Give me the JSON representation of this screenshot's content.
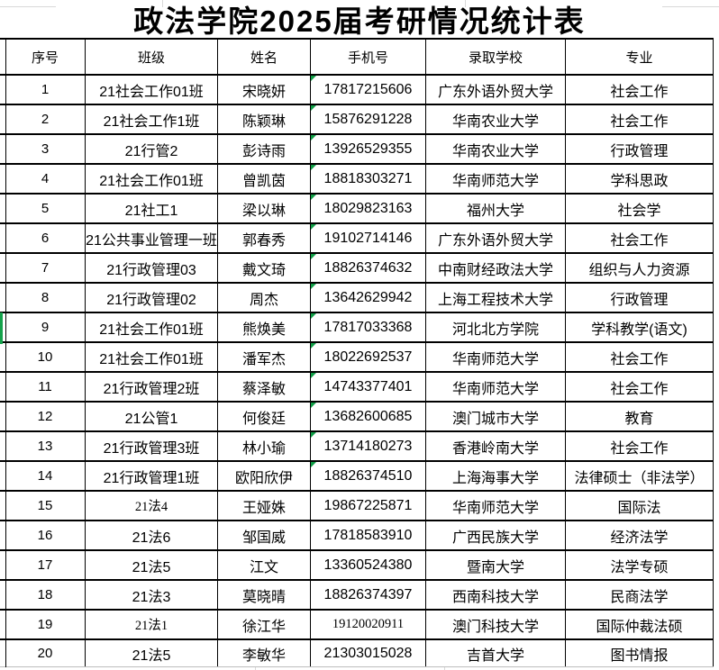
{
  "title": "政法学院2025届考研情况统计表",
  "columns": {
    "no": "序号",
    "class": "班级",
    "name": "姓名",
    "phone": "手机号",
    "school": "录取学校",
    "major": "专业"
  },
  "colors": {
    "border_black": "#000000",
    "gridline_gray": "#d9d9d9",
    "selection_green": "#14a24b",
    "triangle_green": "#0f9d45"
  },
  "selection": {
    "selected_row_no": "9"
  },
  "icons": {
    "error_triangle": "number-stored-as-text-indicator"
  },
  "rows": [
    {
      "no": "1",
      "class": "21社会工作01班",
      "name": "宋晓妍",
      "phone": "17817215606",
      "school": "广东外语外贸大学",
      "major": "社会工作",
      "flag": true,
      "serif_class": false,
      "serif_phone": false
    },
    {
      "no": "2",
      "class": "21社会工作1班",
      "name": "陈颖琳",
      "phone": "15876291228",
      "school": "华南农业大学",
      "major": "社会工作",
      "flag": true,
      "serif_class": false,
      "serif_phone": false
    },
    {
      "no": "3",
      "class": "21行管2",
      "name": "彭诗雨",
      "phone": "13926529355",
      "school": "华南农业大学",
      "major": "行政管理",
      "flag": true,
      "serif_class": false,
      "serif_phone": false
    },
    {
      "no": "4",
      "class": "21社会工作01班",
      "name": "曾凯茵",
      "phone": "18818303271",
      "school": "华南师范大学",
      "major": "学科思政",
      "flag": true,
      "serif_class": false,
      "serif_phone": false
    },
    {
      "no": "5",
      "class": "21社工1",
      "name": "梁以琳",
      "phone": "18029823163",
      "school": "福州大学",
      "major": "社会学",
      "flag": true,
      "serif_class": false,
      "serif_phone": false
    },
    {
      "no": "6",
      "class": "21公共事业管理一班",
      "name": "郭春秀",
      "phone": "19102714146",
      "school": "广东外语外贸大学",
      "major": "社会工作",
      "flag": true,
      "serif_class": false,
      "serif_phone": false
    },
    {
      "no": "7",
      "class": "21行政管理03",
      "name": "戴文琦",
      "phone": "18826374632",
      "school": "中南财经政法大学",
      "major": "组织与人力资源",
      "flag": true,
      "serif_class": false,
      "serif_phone": false
    },
    {
      "no": "8",
      "class": "21行政管理02",
      "name": "周杰",
      "phone": "13642629942",
      "school": "上海工程技术大学",
      "major": "行政管理",
      "flag": true,
      "serif_class": false,
      "serif_phone": false
    },
    {
      "no": "9",
      "class": "21社会工作01班",
      "name": "熊焕美",
      "phone": "17817033368",
      "school": "河北北方学院",
      "major": "学科教学(语文)",
      "flag": true,
      "serif_class": false,
      "serif_phone": false
    },
    {
      "no": "10",
      "class": "21社会工作01班",
      "name": "潘军杰",
      "phone": "18022692537",
      "school": "华南师范大学",
      "major": "社会工作",
      "flag": true,
      "serif_class": false,
      "serif_phone": false
    },
    {
      "no": "11",
      "class": "21行政管理2班",
      "name": "蔡泽敏",
      "phone": "14743377401",
      "school": "华南师范大学",
      "major": "社会工作",
      "flag": true,
      "serif_class": false,
      "serif_phone": false
    },
    {
      "no": "12",
      "class": "21公管1",
      "name": "何俊廷",
      "phone": "13682600685",
      "school": "澳门城市大学",
      "major": "教育",
      "flag": true,
      "serif_class": false,
      "serif_phone": false
    },
    {
      "no": "13",
      "class": "21行政管理3班",
      "name": "林小瑜",
      "phone": "13714180273",
      "school": "香港岭南大学",
      "major": "社会工作",
      "flag": true,
      "serif_class": false,
      "serif_phone": false
    },
    {
      "no": "14",
      "class": "21行政管理1班",
      "name": "欧阳欣伊",
      "phone": "18826374510",
      "school": "上海海事大学",
      "major": "法律硕士（非法学）",
      "flag": true,
      "serif_class": false,
      "serif_phone": false
    },
    {
      "no": "15",
      "class": "21法4",
      "name": "王娅姝",
      "phone": "19867225871",
      "school": "华南师范大学",
      "major": "国际法",
      "flag": false,
      "serif_class": true,
      "serif_phone": false
    },
    {
      "no": "16",
      "class": "21法6",
      "name": "邹国威",
      "phone": "17818583910",
      "school": "广西民族大学",
      "major": "经济法学",
      "flag": false,
      "serif_class": false,
      "serif_phone": false
    },
    {
      "no": "17",
      "class": "21法5",
      "name": "江文",
      "phone": "13360524380",
      "school": "暨南大学",
      "major": "法学专硕",
      "flag": false,
      "serif_class": false,
      "serif_phone": false
    },
    {
      "no": "18",
      "class": "21法3",
      "name": "莫晓晴",
      "phone": "18826374397",
      "school": "西南科技大学",
      "major": "民商法学",
      "flag": false,
      "serif_class": false,
      "serif_phone": false
    },
    {
      "no": "19",
      "class": "21法1",
      "name": "徐江华",
      "phone": "19120020911",
      "school": "澳门科技大学",
      "major": "国际仲裁法硕",
      "flag": false,
      "serif_class": true,
      "serif_phone": true
    },
    {
      "no": "20",
      "class": "21法5",
      "name": "李敏华",
      "phone": "21303015028",
      "school": "吉首大学",
      "major": "图书情报",
      "flag": false,
      "serif_class": false,
      "serif_phone": false
    }
  ]
}
